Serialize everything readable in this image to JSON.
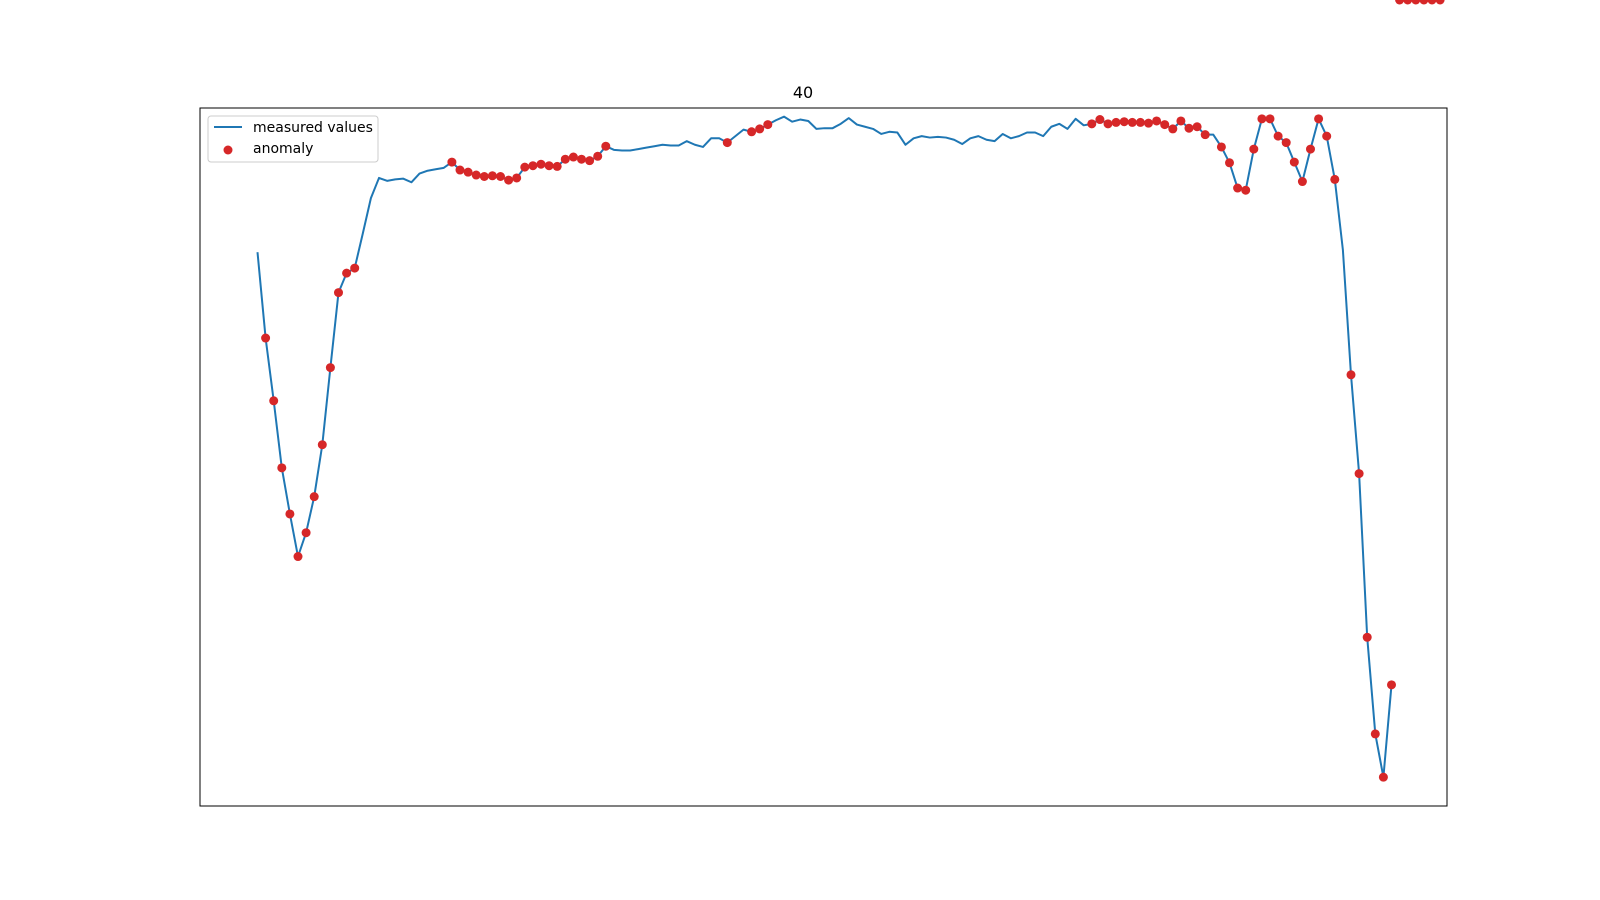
{
  "chart_data": {
    "type": "line",
    "title": "40",
    "xlabel": "",
    "ylabel": "",
    "axes_visible": false,
    "legend": {
      "placement": "top-left",
      "entries": [
        "measured values",
        "anomaly"
      ]
    },
    "colors": {
      "line": "#1f77b4",
      "anomaly": "#d62728"
    },
    "series": [
      {
        "name": "measured values",
        "kind": "line",
        "values": [
          70.2,
          58.3,
          49.6,
          40.3,
          33.9,
          28.0,
          31.3,
          36.3,
          43.5,
          54.2,
          64.6,
          67.3,
          68.0,
          72.8,
          77.7,
          80.5,
          80.1,
          80.3,
          80.4,
          79.9,
          81.1,
          81.5,
          81.7,
          81.9,
          82.7,
          81.6,
          81.3,
          80.9,
          80.7,
          80.8,
          80.7,
          80.2,
          80.5,
          82.0,
          82.2,
          82.4,
          82.2,
          82.1,
          83.1,
          83.4,
          83.1,
          82.9,
          83.5,
          84.9,
          84.4,
          84.3,
          84.3,
          84.5,
          84.7,
          84.9,
          85.1,
          85.0,
          85.0,
          85.6,
          85.1,
          84.8,
          86.0,
          86.0,
          85.4,
          86.3,
          87.2,
          86.9,
          87.3,
          87.9,
          88.5,
          89.0,
          88.3,
          88.6,
          88.4,
          87.3,
          87.4,
          87.4,
          88.0,
          88.8,
          87.9,
          87.6,
          87.3,
          86.6,
          86.9,
          86.8,
          85.1,
          86.0,
          86.3,
          86.1,
          86.2,
          86.1,
          85.8,
          85.2,
          86.0,
          86.3,
          85.8,
          85.6,
          86.6,
          86.0,
          86.3,
          86.8,
          86.8,
          86.3,
          87.6,
          88.0,
          87.3,
          88.7,
          87.8,
          88.0,
          88.6,
          88.0,
          88.2,
          88.3,
          88.2,
          88.2,
          88.1,
          88.4,
          87.9,
          87.3,
          88.4,
          87.4,
          87.6,
          86.5,
          86.5,
          84.8,
          82.6,
          79.1,
          78.8,
          84.5,
          88.7,
          88.7,
          86.3,
          85.4,
          82.7,
          80.0,
          84.5,
          88.7,
          86.3,
          80.3,
          70.5,
          53.2,
          39.5,
          16.8,
          3.4,
          -2.6,
          10.2
        ]
      },
      {
        "name": "anomaly",
        "kind": "scatter",
        "indices": [
          1,
          2,
          3,
          4,
          5,
          6,
          7,
          8,
          9,
          10,
          11,
          12,
          24,
          25,
          26,
          27,
          28,
          29,
          30,
          31,
          32,
          33,
          34,
          35,
          36,
          37,
          38,
          39,
          40,
          41,
          42,
          43,
          58,
          61,
          62,
          63,
          103,
          104,
          105,
          106,
          107,
          108,
          109,
          110,
          111,
          112,
          113,
          114,
          115,
          116,
          117,
          119,
          120,
          121,
          122,
          123,
          124,
          125,
          126,
          127,
          128,
          129,
          130,
          131,
          132,
          133,
          135,
          136,
          137,
          138,
          139,
          140,
          141,
          142,
          143,
          144,
          145,
          146
        ]
      }
    ]
  }
}
